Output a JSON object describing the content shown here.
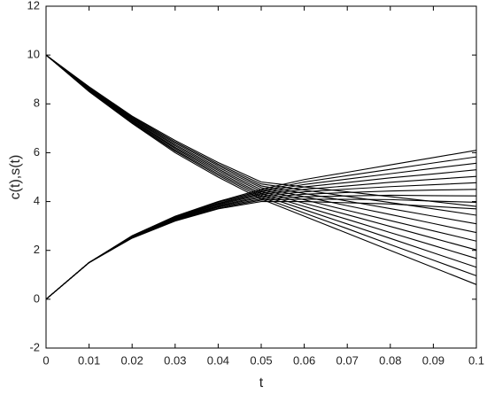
{
  "chart_data": {
    "type": "line",
    "xlabel": "t",
    "ylabel": "c(t),s(t)",
    "color": "#000000",
    "grid": false,
    "x": [
      0,
      0.01,
      0.02,
      0.03,
      0.04,
      0.05,
      0.06,
      0.07,
      0.08,
      0.09,
      0.1
    ],
    "xlim": [
      0,
      0.1
    ],
    "xticks": [
      0,
      0.01,
      0.02,
      0.03,
      0.04,
      0.05,
      0.06,
      0.07,
      0.08,
      0.09,
      0.1
    ],
    "ylim": [
      -2,
      12
    ],
    "yticks": [
      -2,
      0,
      2,
      4,
      6,
      8,
      10,
      12
    ],
    "series": [
      {
        "values": [
          10,
          8.7,
          7.5,
          6.5,
          5.6,
          4.8,
          4.6,
          4.4,
          4.2,
          4.0,
          3.8
        ]
      },
      {
        "values": [
          10,
          8.68,
          7.47,
          6.44,
          5.53,
          4.72,
          4.47,
          4.21,
          3.96,
          3.7,
          3.44
        ]
      },
      {
        "values": [
          10,
          8.66,
          7.43,
          6.39,
          5.47,
          4.64,
          4.33,
          4.02,
          3.71,
          3.4,
          3.09
        ]
      },
      {
        "values": [
          10,
          8.63,
          7.4,
          6.33,
          5.4,
          4.57,
          4.2,
          3.83,
          3.47,
          3.1,
          2.73
        ]
      },
      {
        "values": [
          10,
          8.61,
          7.37,
          6.28,
          5.33,
          4.49,
          4.07,
          3.64,
          3.22,
          2.8,
          2.38
        ]
      },
      {
        "values": [
          10,
          8.59,
          7.33,
          6.22,
          5.27,
          4.41,
          3.93,
          3.46,
          2.98,
          2.5,
          2.02
        ]
      },
      {
        "values": [
          10,
          8.57,
          7.3,
          6.17,
          5.2,
          4.33,
          3.8,
          3.27,
          2.73,
          2.2,
          1.67
        ]
      },
      {
        "values": [
          10,
          8.54,
          7.27,
          6.11,
          5.13,
          4.26,
          3.67,
          3.08,
          2.49,
          1.9,
          1.31
        ]
      },
      {
        "values": [
          10,
          8.52,
          7.23,
          6.06,
          5.07,
          4.18,
          3.53,
          2.89,
          2.24,
          1.6,
          0.96
        ]
      },
      {
        "values": [
          10,
          8.5,
          7.2,
          6.0,
          5.0,
          4.1,
          3.4,
          2.7,
          2.0,
          1.3,
          0.6
        ]
      },
      {
        "values": [
          0,
          1.5,
          2.5,
          3.2,
          3.7,
          4.0,
          4.0,
          3.95,
          3.9,
          3.8,
          3.7
        ]
      },
      {
        "values": [
          0,
          1.5,
          2.51,
          3.22,
          3.73,
          4.06,
          4.1,
          4.09,
          4.08,
          4.02,
          3.97
        ]
      },
      {
        "values": [
          0,
          1.5,
          2.52,
          3.24,
          3.77,
          4.11,
          4.2,
          4.23,
          4.26,
          4.24,
          4.23
        ]
      },
      {
        "values": [
          0,
          1.5,
          2.53,
          3.27,
          3.8,
          4.17,
          4.3,
          4.37,
          4.43,
          4.47,
          4.5
        ]
      },
      {
        "values": [
          0,
          1.5,
          2.54,
          3.29,
          3.83,
          4.22,
          4.4,
          4.51,
          4.61,
          4.69,
          4.77
        ]
      },
      {
        "values": [
          0,
          1.5,
          2.56,
          3.31,
          3.87,
          4.28,
          4.5,
          4.64,
          4.79,
          4.91,
          5.03
        ]
      },
      {
        "values": [
          0,
          1.5,
          2.57,
          3.33,
          3.9,
          4.33,
          4.6,
          4.78,
          4.97,
          5.13,
          5.3
        ]
      },
      {
        "values": [
          0,
          1.5,
          2.58,
          3.36,
          3.93,
          4.39,
          4.7,
          4.92,
          5.14,
          5.36,
          5.57
        ]
      },
      {
        "values": [
          0,
          1.5,
          2.59,
          3.38,
          3.97,
          4.44,
          4.8,
          5.06,
          5.32,
          5.58,
          5.83
        ]
      },
      {
        "values": [
          0,
          1.5,
          2.6,
          3.4,
          4.0,
          4.5,
          4.9,
          5.2,
          5.5,
          5.8,
          6.1
        ]
      }
    ]
  }
}
